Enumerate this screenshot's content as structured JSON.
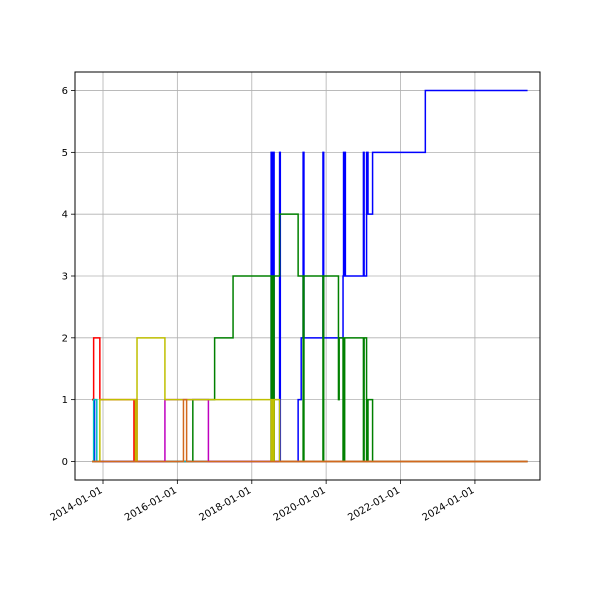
{
  "chart_data": {
    "type": "line",
    "step": "post",
    "title": "",
    "xlabel": "",
    "ylabel": "",
    "grid": true,
    "xlim": [
      "2013-04-01",
      "2025-10-01"
    ],
    "ylim": [
      -0.3,
      6.3
    ],
    "x_ticks": [
      "2014-01-01",
      "2016-01-01",
      "2018-01-01",
      "2020-01-01",
      "2022-01-01",
      "2024-01-01"
    ],
    "y_ticks": [
      "0",
      "1",
      "2",
      "3",
      "4",
      "5",
      "6"
    ],
    "series": [
      {
        "color": "#0000ff",
        "points": [
          [
            "2013-09-15",
            1
          ],
          [
            "2013-10-10",
            0
          ],
          [
            "2018-07-01",
            0
          ],
          [
            "2018-07-10",
            5
          ],
          [
            "2018-07-15",
            0
          ],
          [
            "2018-07-20",
            5
          ],
          [
            "2018-07-25",
            0
          ],
          [
            "2018-08-01",
            5
          ],
          [
            "2018-08-08",
            0
          ],
          [
            "2018-10-01",
            5
          ],
          [
            "2018-10-08",
            0
          ],
          [
            "2019-04-01",
            0
          ],
          [
            "2019-04-01",
            1
          ],
          [
            "2019-05-01",
            2
          ],
          [
            "2019-05-15",
            2
          ],
          [
            "2019-05-20",
            5
          ],
          [
            "2019-05-28",
            2
          ],
          [
            "2019-12-01",
            2
          ],
          [
            "2019-12-01",
            5
          ],
          [
            "2019-12-08",
            2
          ],
          [
            "2020-06-01",
            2
          ],
          [
            "2020-06-15",
            3
          ],
          [
            "2020-06-20",
            5
          ],
          [
            "2020-06-25",
            3
          ],
          [
            "2020-07-01",
            5
          ],
          [
            "2020-07-08",
            3
          ],
          [
            "2021-01-01",
            3
          ],
          [
            "2021-01-01",
            5
          ],
          [
            "2021-01-08",
            3
          ],
          [
            "2021-02-01",
            3
          ],
          [
            "2021-02-01",
            5
          ],
          [
            "2021-02-15",
            4
          ],
          [
            "2021-04-01",
            4
          ],
          [
            "2021-04-01",
            5
          ],
          [
            "2021-04-15",
            5
          ],
          [
            "2022-09-01",
            5
          ],
          [
            "2022-09-01",
            6
          ],
          [
            "2025-06-01",
            6
          ]
        ]
      },
      {
        "color": "#008000",
        "points": [
          [
            "2013-09-15",
            0
          ],
          [
            "2016-06-01",
            0
          ],
          [
            "2016-06-01",
            1
          ],
          [
            "2017-01-01",
            1
          ],
          [
            "2017-01-01",
            2
          ],
          [
            "2017-07-01",
            2
          ],
          [
            "2017-07-01",
            3
          ],
          [
            "2018-07-01",
            3
          ],
          [
            "2018-07-10",
            0
          ],
          [
            "2018-07-15",
            3
          ],
          [
            "2018-07-20",
            0
          ],
          [
            "2018-07-25",
            3
          ],
          [
            "2018-08-01",
            0
          ],
          [
            "2018-08-08",
            3
          ],
          [
            "2018-10-01",
            3
          ],
          [
            "2018-10-01",
            4
          ],
          [
            "2019-04-01",
            4
          ],
          [
            "2019-04-01",
            3
          ],
          [
            "2019-05-20",
            3
          ],
          [
            "2019-05-20",
            0
          ],
          [
            "2019-05-28",
            3
          ],
          [
            "2019-12-01",
            3
          ],
          [
            "2019-12-01",
            0
          ],
          [
            "2019-12-08",
            3
          ],
          [
            "2020-05-01",
            3
          ],
          [
            "2020-05-01",
            1
          ],
          [
            "2020-05-08",
            2
          ],
          [
            "2020-06-15",
            2
          ],
          [
            "2020-06-15",
            0
          ],
          [
            "2020-06-20",
            2
          ],
          [
            "2020-06-25",
            0
          ],
          [
            "2020-07-01",
            2
          ],
          [
            "2020-07-08",
            2
          ],
          [
            "2021-01-01",
            2
          ],
          [
            "2021-01-01",
            0
          ],
          [
            "2021-01-08",
            2
          ],
          [
            "2021-02-01",
            2
          ],
          [
            "2021-02-01",
            0
          ],
          [
            "2021-02-15",
            1
          ],
          [
            "2021-04-01",
            1
          ],
          [
            "2021-04-01",
            0
          ],
          [
            "2021-04-15",
            0
          ],
          [
            "2025-06-01",
            0
          ]
        ]
      },
      {
        "color": "#ff0000",
        "points": [
          [
            "2013-09-15",
            1
          ],
          [
            "2013-10-01",
            2
          ],
          [
            "2013-12-01",
            2
          ],
          [
            "2013-12-01",
            1
          ],
          [
            "2014-11-01",
            1
          ],
          [
            "2014-11-01",
            0
          ],
          [
            "2014-11-15",
            1
          ],
          [
            "2014-12-01",
            0
          ],
          [
            "2025-06-01",
            0
          ]
        ]
      },
      {
        "color": "#00bfbf",
        "points": [
          [
            "2013-09-15",
            0
          ],
          [
            "2013-10-01",
            1
          ],
          [
            "2013-11-01",
            1
          ],
          [
            "2013-11-01",
            0
          ],
          [
            "2025-06-01",
            0
          ]
        ]
      },
      {
        "color": "#bf00bf",
        "points": [
          [
            "2013-09-15",
            0
          ],
          [
            "2015-09-01",
            0
          ],
          [
            "2015-09-01",
            1
          ],
          [
            "2016-11-01",
            1
          ],
          [
            "2016-11-01",
            0
          ],
          [
            "2025-06-01",
            0
          ]
        ]
      },
      {
        "color": "#bfbf00",
        "points": [
          [
            "2013-09-15",
            0
          ],
          [
            "2013-12-01",
            0
          ],
          [
            "2013-12-01",
            1
          ],
          [
            "2014-11-15",
            1
          ],
          [
            "2014-11-15",
            0
          ],
          [
            "2014-12-01",
            2
          ],
          [
            "2015-09-01",
            2
          ],
          [
            "2015-09-01",
            1
          ],
          [
            "2018-07-01",
            1
          ],
          [
            "2018-07-10",
            0
          ],
          [
            "2018-07-15",
            1
          ],
          [
            "2018-07-20",
            0
          ],
          [
            "2018-07-25",
            1
          ],
          [
            "2018-08-01",
            0
          ],
          [
            "2018-08-08",
            1
          ],
          [
            "2018-10-01",
            1
          ],
          [
            "2018-10-01",
            0
          ],
          [
            "2025-06-01",
            0
          ]
        ]
      },
      {
        "color": "#d2691e",
        "points": [
          [
            "2013-09-15",
            0
          ],
          [
            "2016-03-01",
            0
          ],
          [
            "2016-03-01",
            1
          ],
          [
            "2016-04-01",
            1
          ],
          [
            "2016-04-01",
            0
          ],
          [
            "2025-06-01",
            0
          ]
        ]
      }
    ]
  }
}
